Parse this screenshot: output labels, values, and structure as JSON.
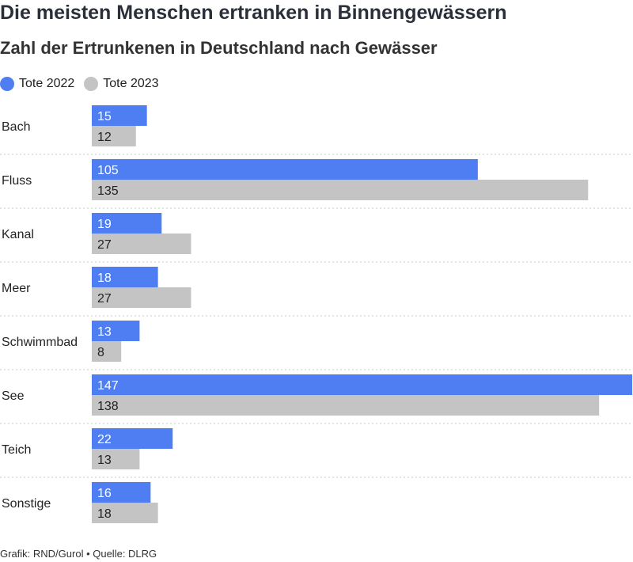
{
  "header": {
    "title": "Die meisten Menschen ertranken in Binnengewässern",
    "subtitle": "Zahl der Ertrunkenen in Deutschland nach Gewässer"
  },
  "footer": {
    "credit": "Grafik: RND/Gurol • Quelle: DLRG"
  },
  "chart_data": {
    "type": "bar",
    "orientation": "horizontal",
    "title": "Die meisten Menschen ertranken in Binnengewässern",
    "subtitle": "Zahl der Ertrunkenen in Deutschland nach Gewässer",
    "categories": [
      "Bach",
      "Fluss",
      "Kanal",
      "Meer",
      "Schwimmbad",
      "See",
      "Teich",
      "Sonstige"
    ],
    "series": [
      {
        "name": "Tote 2022",
        "color": "#4f7ef2",
        "values": [
          15,
          105,
          19,
          18,
          13,
          147,
          22,
          16
        ]
      },
      {
        "name": "Tote 2023",
        "color": "#c4c4c4",
        "values": [
          12,
          135,
          27,
          27,
          8,
          138,
          13,
          18
        ]
      }
    ],
    "xlim": [
      0,
      147
    ],
    "legend_position": "top-left",
    "data_labels": "inside-left",
    "grid": false,
    "row_separators": "dotted"
  }
}
